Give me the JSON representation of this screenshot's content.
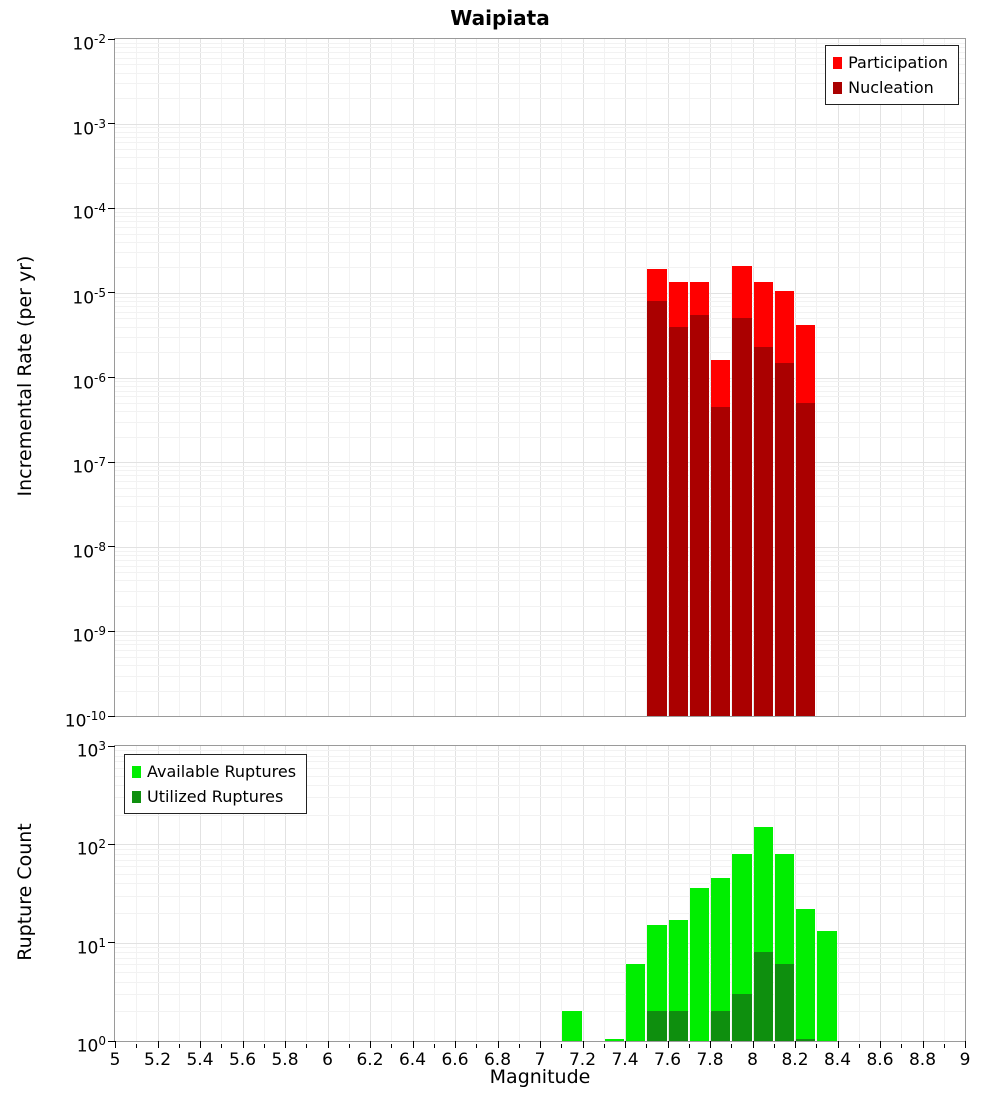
{
  "figure": {
    "title": "Waipiata",
    "x_axis_label": "Magnitude"
  },
  "chart_data": [
    {
      "type": "bar",
      "title": "Waipiata",
      "ylabel": "Incremental Rate (per yr)",
      "xlabel": "",
      "yscale": "log",
      "ylim": [
        1e-10,
        0.01
      ],
      "xlim": [
        5,
        9
      ],
      "bin_width": 0.1,
      "grid": true,
      "legend_position": "top-right",
      "y_tick_exponents": [
        -2,
        -3,
        -4,
        -5,
        -6,
        -7,
        -8,
        -9,
        -10
      ],
      "series": [
        {
          "name": "Participation",
          "color": "#ff0000",
          "x": [
            7.5,
            7.6,
            7.7,
            7.8,
            7.9,
            8.0,
            8.1,
            8.2
          ],
          "values": [
            1.9e-05,
            1.35e-05,
            1.35e-05,
            1.6e-06,
            2.1e-05,
            1.35e-05,
            1.05e-05,
            4.2e-06
          ]
        },
        {
          "name": "Nucleation",
          "color": "#aa0000",
          "x": [
            7.5,
            7.6,
            7.7,
            7.8,
            7.9,
            8.0,
            8.1,
            8.2
          ],
          "values": [
            8e-06,
            4e-06,
            5.5e-06,
            4.5e-07,
            5e-06,
            2.3e-06,
            1.5e-06,
            5e-07
          ]
        }
      ]
    },
    {
      "type": "bar",
      "title": "",
      "ylabel": "Rupture Count",
      "xlabel": "Magnitude",
      "yscale": "log",
      "ylim": [
        1,
        1000
      ],
      "xlim": [
        5,
        9
      ],
      "bin_width": 0.1,
      "grid": true,
      "legend_position": "top-left",
      "y_tick_exponents": [
        0,
        1,
        2,
        3
      ],
      "x_tick_step": 0.2,
      "x_tick_labels": [
        "5",
        "5.2",
        "5.4",
        "5.6",
        "5.8",
        "6",
        "6.2",
        "6.4",
        "6.6",
        "6.8",
        "7",
        "7.2",
        "7.4",
        "7.6",
        "7.8",
        "8",
        "8.2",
        "8.4",
        "8.6",
        "8.8",
        "9"
      ],
      "series": [
        {
          "name": "Available Ruptures",
          "color": "#00ee00",
          "x": [
            7.1,
            7.3,
            7.4,
            7.5,
            7.6,
            7.7,
            7.8,
            7.9,
            8.0,
            8.1,
            8.2,
            8.3
          ],
          "values": [
            2,
            1,
            6,
            15,
            17,
            36,
            45,
            80,
            150,
            80,
            22,
            13
          ]
        },
        {
          "name": "Utilized Ruptures",
          "color": "#0e8f0e",
          "x": [
            7.5,
            7.6,
            7.8,
            7.9,
            8.0,
            8.1,
            8.2
          ],
          "values": [
            2,
            2,
            2,
            3,
            8,
            6,
            1
          ]
        }
      ]
    }
  ]
}
